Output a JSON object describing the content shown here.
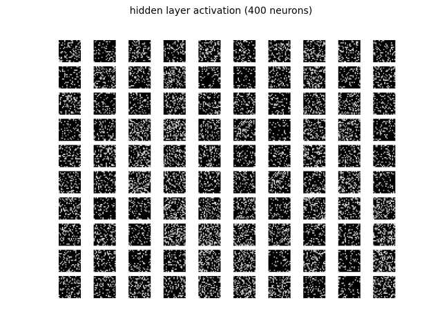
{
  "chart_data": {
    "type": "heatmap",
    "title": "hidden layer activation (400 neurons)",
    "grid_rows": 10,
    "grid_cols": 10,
    "panel_resolution": [
      20,
      20
    ],
    "colormap": "gray",
    "value_range": [
      0,
      1
    ],
    "white_fraction_estimate": 0.25,
    "axes_visible": false,
    "colors": {
      "background": "#ffffff",
      "low": "#000000",
      "high": "#ffffff"
    }
  }
}
